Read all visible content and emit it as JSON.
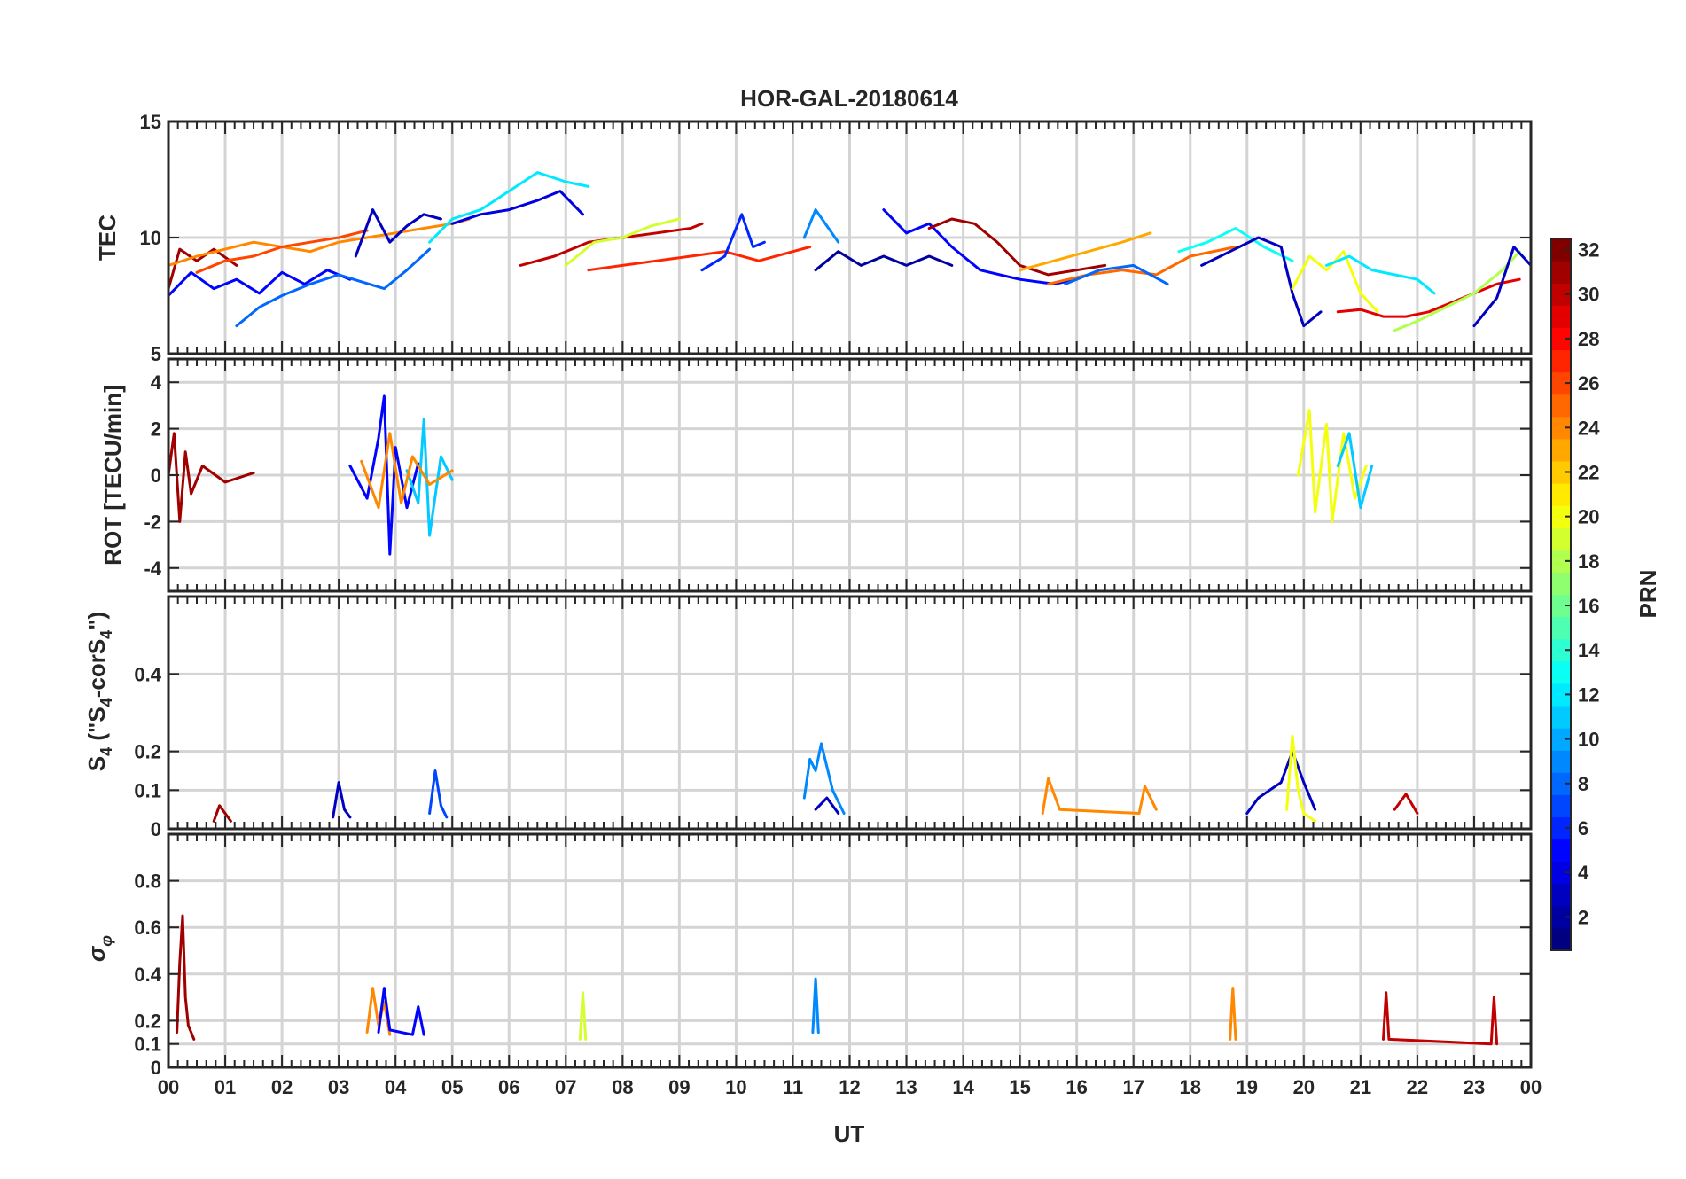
{
  "chart_data": {
    "type": "line",
    "title": "HOR-GAL-20180614",
    "xlabel": "UT",
    "x_ticks": [
      "00",
      "01",
      "02",
      "03",
      "04",
      "05",
      "06",
      "07",
      "08",
      "09",
      "10",
      "11",
      "12",
      "13",
      "14",
      "15",
      "16",
      "17",
      "18",
      "19",
      "20",
      "21",
      "22",
      "23",
      "00"
    ],
    "xlim": [
      0,
      24
    ],
    "grid": true,
    "colorbar": {
      "label": "PRN",
      "colormap": "jet",
      "range": [
        1,
        32
      ],
      "ticks": [
        2,
        4,
        6,
        8,
        10,
        12,
        14,
        16,
        18,
        20,
        22,
        24,
        26,
        28,
        30,
        32
      ],
      "tick_labels": [
        "2",
        "4",
        "6",
        "8",
        "10",
        "12",
        "14",
        "16",
        "18",
        "20",
        "22",
        "24",
        "26",
        "28",
        "30",
        "32"
      ]
    },
    "panels": [
      {
        "name": "tec",
        "ylabel": "TEC",
        "ylim": [
          5,
          15
        ],
        "yticks": [
          5,
          10,
          15
        ],
        "ytick_labels": [
          "5",
          "10",
          "15"
        ],
        "series": [
          {
            "prn": 31,
            "x": [
              0,
              0.2,
              0.5,
              0.8,
              1.2
            ],
            "y": [
              7.8,
              9.5,
              9.0,
              9.5,
              8.8
            ]
          },
          {
            "prn": 5,
            "x": [
              0,
              0.4,
              0.8,
              1.2,
              1.6,
              2.0,
              2.4,
              2.8,
              3.2
            ],
            "y": [
              7.5,
              8.5,
              7.8,
              8.2,
              7.6,
              8.5,
              8.0,
              8.6,
              8.2
            ]
          },
          {
            "prn": 24,
            "x": [
              0,
              0.5,
              1.0,
              1.5,
              2.0,
              2.5,
              3.0,
              3.5,
              4.0,
              4.5,
              5.0,
              5.3
            ],
            "y": [
              8.8,
              9.2,
              9.5,
              9.8,
              9.6,
              9.4,
              9.8,
              10.0,
              10.2,
              10.4,
              10.6,
              10.8
            ]
          },
          {
            "prn": 26,
            "x": [
              0.5,
              1.0,
              1.5,
              2.0,
              2.5,
              3.0,
              3.5
            ],
            "y": [
              8.5,
              9.0,
              9.2,
              9.6,
              9.8,
              10.0,
              10.3
            ]
          },
          {
            "prn": 8,
            "x": [
              1.2,
              1.6,
              2.0,
              2.5,
              3.0,
              3.4,
              3.8,
              4.2,
              4.6
            ],
            "y": [
              6.2,
              7.0,
              7.5,
              8.0,
              8.4,
              8.1,
              7.8,
              8.6,
              9.5
            ]
          },
          {
            "prn": 3,
            "x": [
              3.3,
              3.6,
              3.9,
              4.2,
              4.5,
              4.8
            ],
            "y": [
              9.2,
              11.2,
              9.8,
              10.5,
              11.0,
              10.8
            ]
          },
          {
            "prn": 12,
            "x": [
              4.6,
              5.0,
              5.5,
              6.0,
              6.5,
              7.0,
              7.4
            ],
            "y": [
              9.8,
              10.8,
              11.2,
              12.0,
              12.8,
              12.4,
              12.2
            ]
          },
          {
            "prn": 4,
            "x": [
              5.0,
              5.5,
              6.0,
              6.5,
              6.9,
              7.3
            ],
            "y": [
              10.6,
              11.0,
              11.2,
              11.6,
              12.0,
              11.0
            ]
          },
          {
            "prn": 30,
            "x": [
              6.2,
              6.8,
              7.4,
              8.0,
              8.6,
              9.2,
              9.4
            ],
            "y": [
              8.8,
              9.2,
              9.8,
              10.0,
              10.2,
              10.4,
              10.6
            ]
          },
          {
            "prn": 19,
            "x": [
              7.0,
              7.5,
              8.0,
              8.5,
              9.0
            ],
            "y": [
              8.8,
              9.8,
              10.0,
              10.5,
              10.8
            ]
          },
          {
            "prn": 27,
            "x": [
              7.4,
              8.0,
              8.6,
              9.2,
              9.8,
              10.4,
              11.0,
              11.3
            ],
            "y": [
              8.6,
              8.8,
              9.0,
              9.2,
              9.4,
              9.0,
              9.4,
              9.6
            ]
          },
          {
            "prn": 6,
            "x": [
              9.4,
              9.8,
              10.1,
              10.3,
              10.5
            ],
            "y": [
              8.6,
              9.2,
              11.0,
              9.6,
              9.8
            ]
          },
          {
            "prn": 9,
            "x": [
              11.2,
              11.4,
              11.6,
              11.8
            ],
            "y": [
              10.0,
              11.2,
              10.5,
              9.8
            ]
          },
          {
            "prn": 2,
            "x": [
              11.4,
              11.8,
              12.2,
              12.6,
              13.0,
              13.4,
              13.8
            ],
            "y": [
              8.6,
              9.4,
              8.8,
              9.2,
              8.8,
              9.2,
              8.8
            ]
          },
          {
            "prn": 5,
            "x": [
              12.6,
              13.0,
              13.4,
              13.8,
              14.3,
              15.0,
              15.6,
              16.0
            ],
            "y": [
              11.2,
              10.2,
              10.6,
              9.6,
              8.6,
              8.2,
              8.0,
              8.2
            ]
          },
          {
            "prn": 31,
            "x": [
              13.4,
              13.8,
              14.2,
              14.6,
              15.0,
              15.5,
              16.0,
              16.5
            ],
            "y": [
              10.4,
              10.8,
              10.6,
              9.8,
              8.8,
              8.4,
              8.6,
              8.8
            ]
          },
          {
            "prn": 23,
            "x": [
              15.0,
              15.6,
              16.2,
              16.8,
              17.3
            ],
            "y": [
              8.6,
              9.0,
              9.4,
              9.8,
              10.2
            ]
          },
          {
            "prn": 25,
            "x": [
              15.5,
              16.2,
              16.8,
              17.4,
              18.0,
              18.8
            ],
            "y": [
              8.0,
              8.4,
              8.6,
              8.4,
              9.2,
              9.6
            ]
          },
          {
            "prn": 8,
            "x": [
              15.8,
              16.4,
              17.0,
              17.6
            ],
            "y": [
              8.0,
              8.6,
              8.8,
              8.0
            ]
          },
          {
            "prn": 13,
            "x": [
              17.8,
              18.3,
              18.8,
              19.3,
              19.8
            ],
            "y": [
              9.4,
              9.8,
              10.4,
              9.6,
              9.0
            ]
          },
          {
            "prn": 3,
            "x": [
              18.2,
              18.7,
              19.2,
              19.6,
              19.8,
              20.0,
              20.3
            ],
            "y": [
              8.8,
              9.4,
              10.0,
              9.6,
              7.6,
              6.2,
              6.8
            ]
          },
          {
            "prn": 20,
            "x": [
              19.8,
              20.1,
              20.4,
              20.7,
              21.0,
              21.3
            ],
            "y": [
              7.8,
              9.2,
              8.6,
              9.4,
              7.6,
              6.8
            ]
          },
          {
            "prn": 12,
            "x": [
              20.4,
              20.8,
              21.2,
              21.6,
              22.0,
              22.3
            ],
            "y": [
              8.8,
              9.2,
              8.6,
              8.4,
              8.2,
              7.6
            ]
          },
          {
            "prn": 29,
            "x": [
              20.6,
              21.0,
              21.4,
              21.8,
              22.2,
              22.6,
              23.0,
              23.4,
              23.8
            ],
            "y": [
              6.8,
              6.9,
              6.6,
              6.6,
              6.8,
              7.2,
              7.6,
              8.0,
              8.2
            ]
          },
          {
            "prn": 18,
            "x": [
              21.6,
              22.0,
              22.5,
              23.0,
              23.5,
              23.8
            ],
            "y": [
              6.0,
              6.4,
              7.0,
              7.6,
              8.6,
              9.4
            ]
          },
          {
            "prn": 3,
            "x": [
              23.0,
              23.4,
              23.7,
              24.0
            ],
            "y": [
              6.2,
              7.4,
              9.6,
              8.8
            ]
          }
        ]
      },
      {
        "name": "rot",
        "ylabel": "ROT [TECU/min]",
        "ylim": [
          -5,
          5
        ],
        "yticks": [
          -4,
          -2,
          0,
          2,
          4
        ],
        "ytick_labels": [
          "-4",
          "-2",
          "0",
          "2",
          "4"
        ],
        "series": [
          {
            "prn": 31,
            "x": [
              0,
              0.1,
              0.2,
              0.3,
              0.4,
              0.6,
              1.0,
              1.5
            ],
            "y": [
              0,
              1.8,
              -2.0,
              1.0,
              -0.8,
              0.4,
              -0.3,
              0.1
            ]
          },
          {
            "prn": 5,
            "x": [
              3.2,
              3.5,
              3.7,
              3.8,
              3.9,
              4.0,
              4.2,
              4.4
            ],
            "y": [
              0.4,
              -1.0,
              1.6,
              3.4,
              -3.4,
              1.2,
              -1.4,
              0.5
            ]
          },
          {
            "prn": 11,
            "x": [
              4.2,
              4.4,
              4.5,
              4.6,
              4.8,
              5.0
            ],
            "y": [
              0.2,
              -1.2,
              2.4,
              -2.6,
              0.8,
              -0.2
            ]
          },
          {
            "prn": 24,
            "x": [
              3.4,
              3.7,
              3.9,
              4.1,
              4.3,
              4.6,
              5.0
            ],
            "y": [
              0.6,
              -1.4,
              1.8,
              -1.2,
              0.8,
              -0.4,
              0.2
            ]
          },
          {
            "prn": 20,
            "x": [
              19.9,
              20.1,
              20.2,
              20.4,
              20.5,
              20.7,
              20.9,
              21.1
            ],
            "y": [
              0,
              2.8,
              -1.6,
              2.2,
              -2.0,
              1.8,
              -1.0,
              0.4
            ]
          },
          {
            "prn": 11,
            "x": [
              20.6,
              20.8,
              21.0,
              21.2
            ],
            "y": [
              0.4,
              1.8,
              -1.4,
              0.4
            ]
          }
        ]
      },
      {
        "name": "s4",
        "ylabel": "S4 (\"S4-corS4\")",
        "ylim": [
          0,
          0.6
        ],
        "yticks": [
          0,
          0.1,
          0.2,
          0.4
        ],
        "ytick_labels": [
          "0",
          "0.1",
          "0.2",
          "0.4"
        ],
        "series": [
          {
            "prn": 31,
            "x": [
              0.8,
              0.9,
              1.0,
              1.1
            ],
            "y": [
              0.02,
              0.06,
              0.04,
              0.02
            ]
          },
          {
            "prn": 3,
            "x": [
              2.9,
              3.0,
              3.1,
              3.2
            ],
            "y": [
              0.03,
              0.12,
              0.05,
              0.03
            ]
          },
          {
            "prn": 7,
            "x": [
              4.6,
              4.7,
              4.8,
              4.9
            ],
            "y": [
              0.04,
              0.15,
              0.06,
              0.03
            ]
          },
          {
            "prn": 9,
            "x": [
              11.2,
              11.3,
              11.4,
              11.5,
              11.6,
              11.7,
              11.9
            ],
            "y": [
              0.08,
              0.18,
              0.15,
              0.22,
              0.16,
              0.1,
              0.04
            ]
          },
          {
            "prn": 3,
            "x": [
              11.4,
              11.6,
              11.8
            ],
            "y": [
              0.05,
              0.08,
              0.04
            ]
          },
          {
            "prn": 3,
            "x": [
              19.0,
              19.2,
              19.4,
              19.6,
              19.8,
              20.0,
              20.2
            ],
            "y": [
              0.04,
              0.08,
              0.1,
              0.12,
              0.2,
              0.12,
              0.05
            ]
          },
          {
            "prn": 20,
            "x": [
              19.7,
              19.8,
              19.9,
              20.0,
              20.2
            ],
            "y": [
              0.05,
              0.24,
              0.1,
              0.04,
              0.02
            ]
          },
          {
            "prn": 30,
            "x": [
              21.6,
              21.8,
              22.0
            ],
            "y": [
              0.05,
              0.09,
              0.04
            ]
          },
          {
            "prn": 24,
            "x": [
              15.4,
              15.5,
              15.7,
              17.1,
              17.2,
              17.4
            ],
            "y": [
              0.04,
              0.13,
              0.05,
              0.04,
              0.11,
              0.05
            ]
          }
        ]
      },
      {
        "name": "sigma_phi",
        "ylabel": "σφ",
        "ylim": [
          0,
          1
        ],
        "yticks": [
          0,
          0.1,
          0.2,
          0.4,
          0.6,
          0.8
        ],
        "ytick_labels": [
          "0",
          "0.1",
          "0.2",
          "0.4",
          "0.6",
          "0.8"
        ],
        "series": [
          {
            "prn": 31,
            "x": [
              0.15,
              0.2,
              0.25,
              0.3,
              0.35,
              0.45
            ],
            "y": [
              0.15,
              0.45,
              0.65,
              0.3,
              0.18,
              0.12
            ]
          },
          {
            "prn": 24,
            "x": [
              3.5,
              3.6,
              3.7,
              3.8,
              3.9
            ],
            "y": [
              0.15,
              0.34,
              0.18,
              0.28,
              0.14
            ]
          },
          {
            "prn": 5,
            "x": [
              3.7,
              3.8,
              3.9,
              4.3,
              4.4,
              4.5
            ],
            "y": [
              0.15,
              0.34,
              0.16,
              0.14,
              0.26,
              0.14
            ]
          },
          {
            "prn": 19,
            "x": [
              7.25,
              7.3,
              7.35
            ],
            "y": [
              0.12,
              0.32,
              0.12
            ]
          },
          {
            "prn": 9,
            "x": [
              11.35,
              11.4,
              11.45
            ],
            "y": [
              0.15,
              0.38,
              0.15
            ]
          },
          {
            "prn": 24,
            "x": [
              18.7,
              18.75,
              18.8
            ],
            "y": [
              0.12,
              0.34,
              0.12
            ]
          },
          {
            "prn": 30,
            "x": [
              21.4,
              21.45,
              21.5,
              23.3,
              23.35,
              23.4
            ],
            "y": [
              0.12,
              0.32,
              0.12,
              0.1,
              0.3,
              0.1
            ]
          }
        ]
      }
    ]
  }
}
